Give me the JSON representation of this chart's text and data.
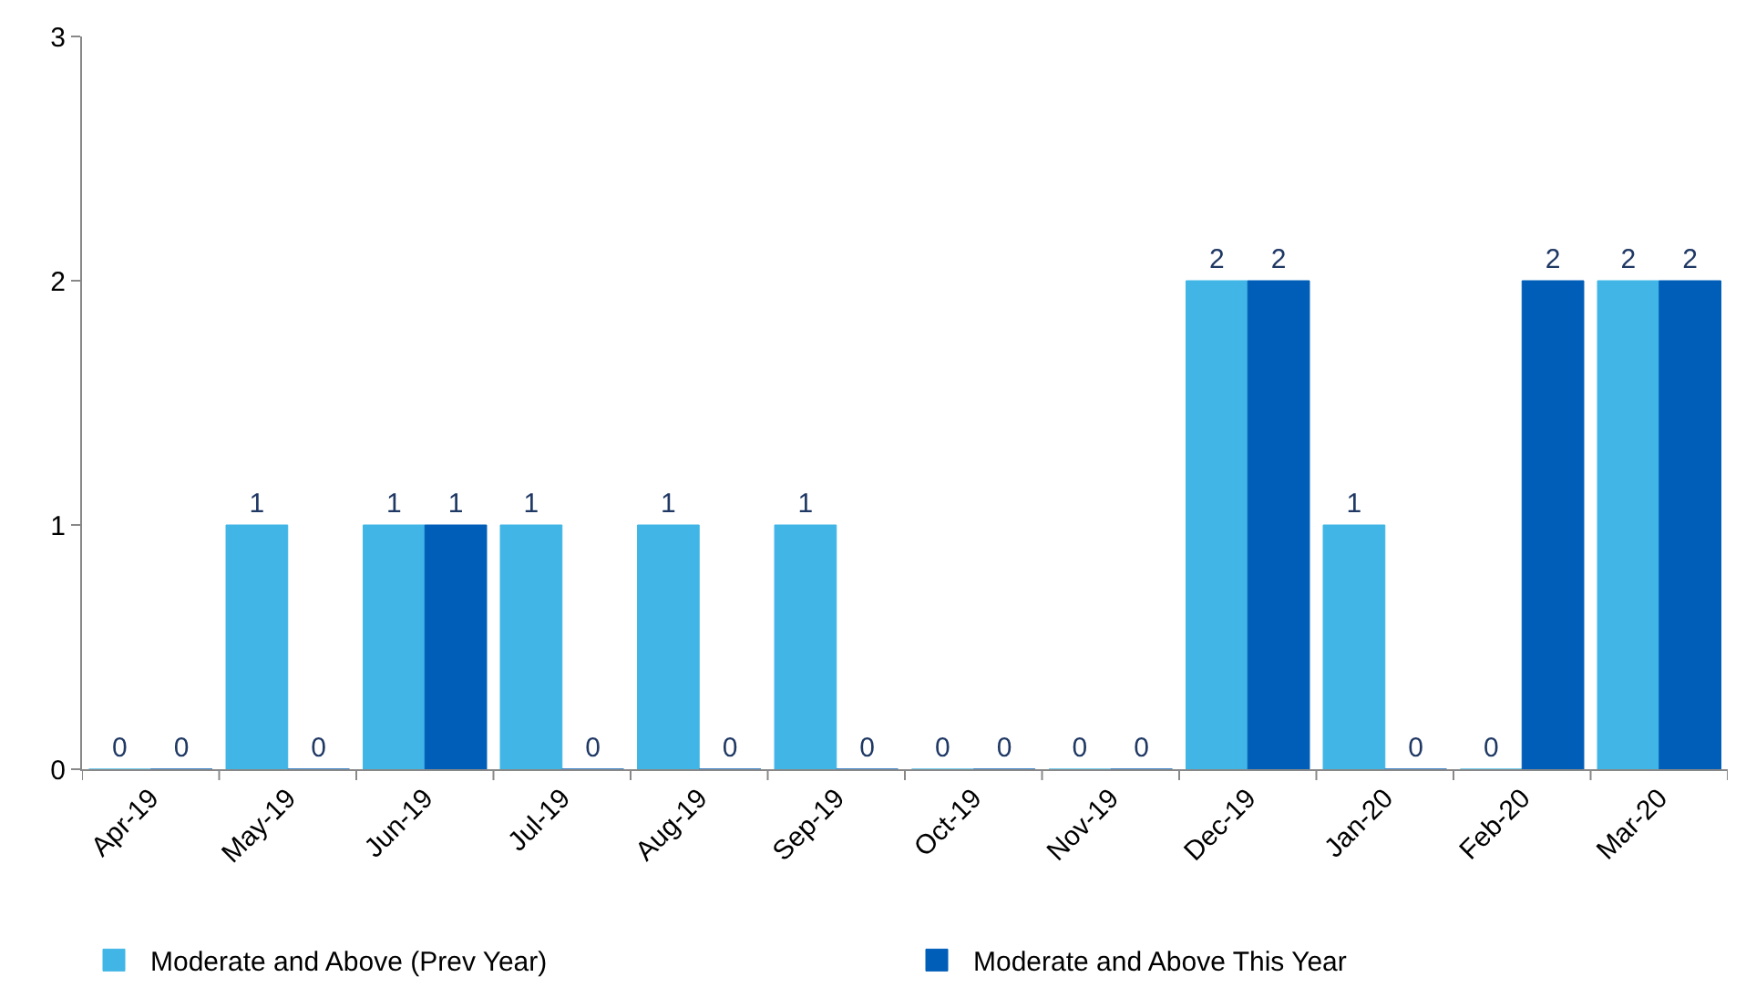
{
  "chart_data": {
    "type": "bar",
    "categories": [
      "Apr-19",
      "May-19",
      "Jun-19",
      "Jul-19",
      "Aug-19",
      "Sep-19",
      "Oct-19",
      "Nov-19",
      "Dec-19",
      "Jan-20",
      "Feb-20",
      "Mar-20"
    ],
    "series": [
      {
        "name": "Moderate and Above (Prev Year)",
        "color": "#41b6e6",
        "values": [
          0,
          1,
          1,
          1,
          1,
          1,
          0,
          0,
          2,
          1,
          0,
          2
        ]
      },
      {
        "name": "Moderate and Above This Year",
        "color": "#005eb8",
        "values": [
          0,
          0,
          1,
          0,
          0,
          0,
          0,
          0,
          2,
          0,
          2,
          2
        ]
      }
    ],
    "ylim": [
      0,
      3
    ],
    "yticks": [
      0,
      1,
      2,
      3
    ],
    "legend": "bottom",
    "data_labels": true
  }
}
